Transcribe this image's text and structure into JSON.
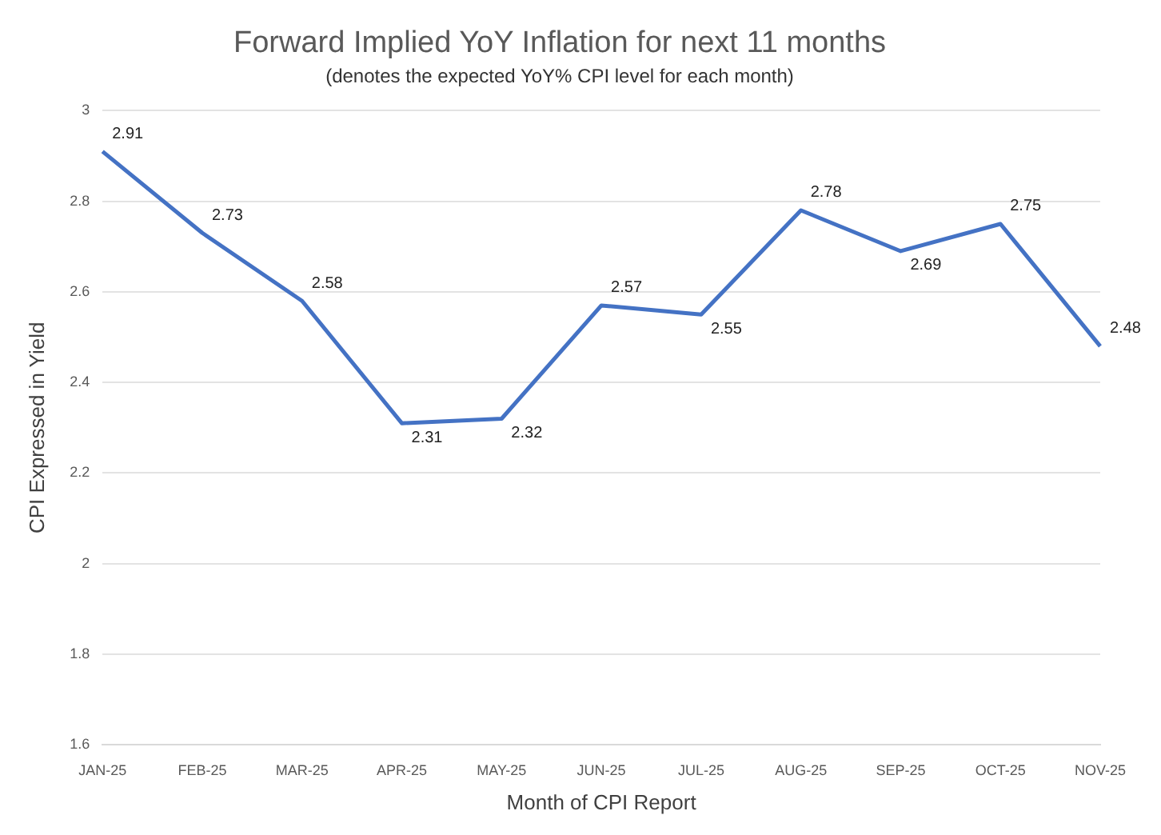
{
  "chart_data": {
    "type": "line",
    "title": "Forward Implied YoY Inflation for next 11 months",
    "subtitle": "(denotes the expected YoY% CPI level for each month)",
    "xlabel": "Month of CPI Report",
    "ylabel": "CPI Expressed in Yield",
    "categories": [
      "JAN-25",
      "FEB-25",
      "MAR-25",
      "APR-25",
      "MAY-25",
      "JUN-25",
      "JUL-25",
      "AUG-25",
      "SEP-25",
      "OCT-25",
      "NOV-25"
    ],
    "series": [
      {
        "color": "#4472c4",
        "values": [
          2.91,
          2.73,
          2.58,
          2.31,
          2.32,
          2.57,
          2.55,
          2.78,
          2.69,
          2.75,
          2.48
        ]
      }
    ],
    "ylim": [
      1.6,
      3
    ],
    "yticks": [
      1.6,
      1.8,
      2,
      2.2,
      2.4,
      2.6,
      2.8,
      3
    ],
    "grid": "y",
    "legend": false,
    "marker": "none",
    "line_style": "solid",
    "data_labels": true
  }
}
